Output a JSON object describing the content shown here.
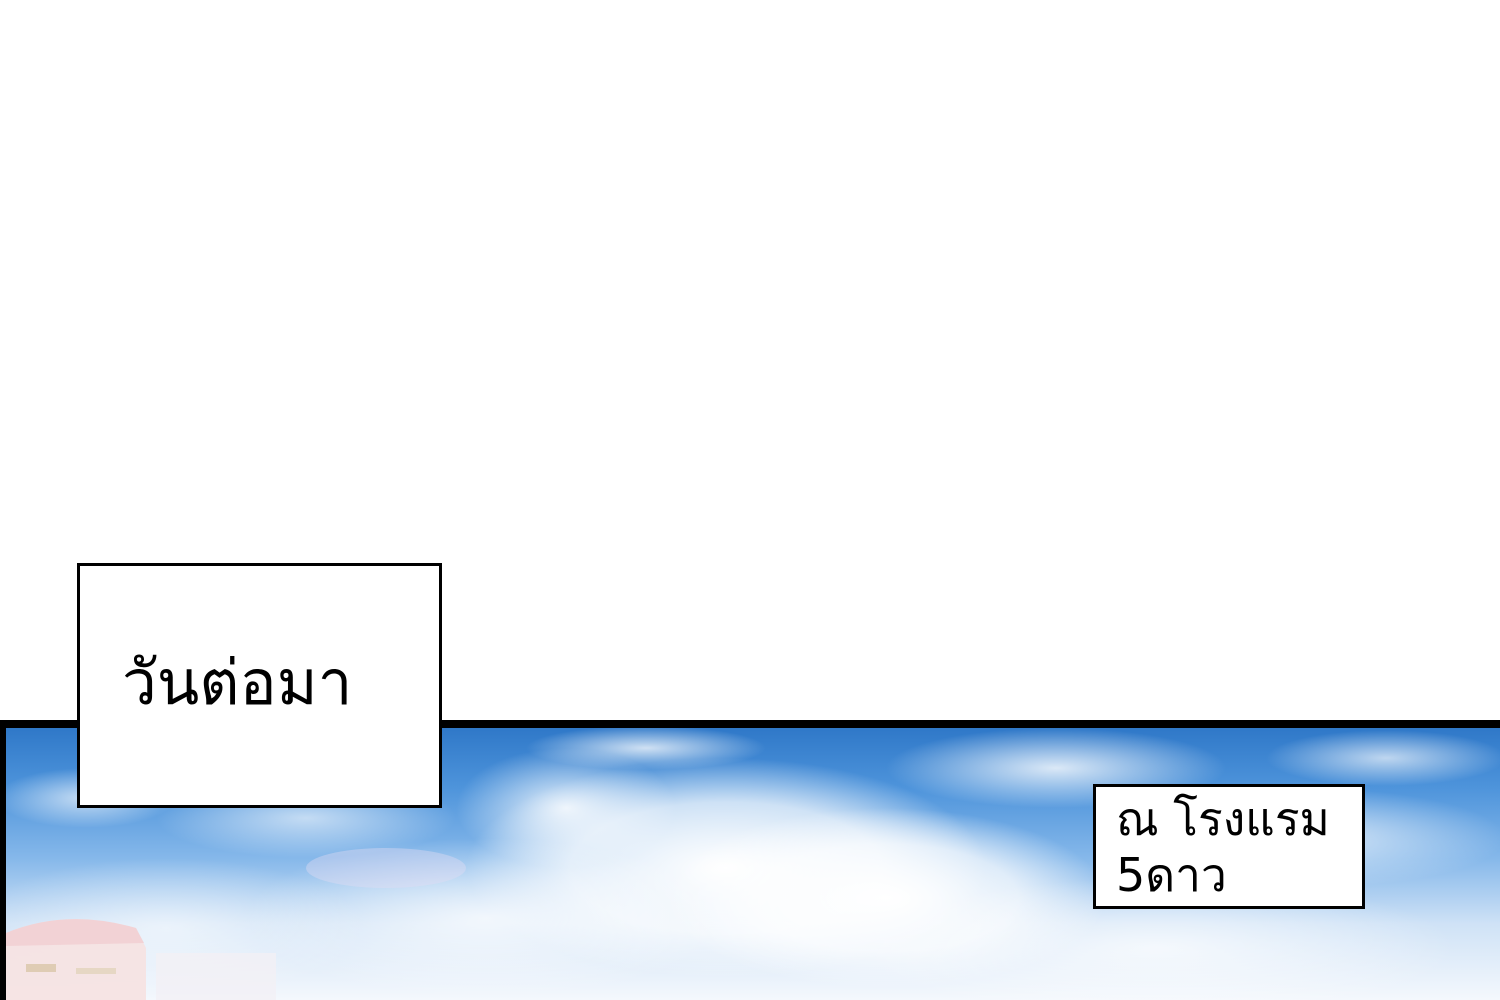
{
  "captions": {
    "next_day": "วันต่อมา",
    "hotel_line1": "ณ โรงแรม",
    "hotel_line2": "5ดาว"
  },
  "colors": {
    "page_background": "#ffffff",
    "border": "#000000",
    "sky_top": "#2f78c8",
    "sky_mid": "#86b8ea",
    "sky_bottom": "#f4f8fd"
  }
}
